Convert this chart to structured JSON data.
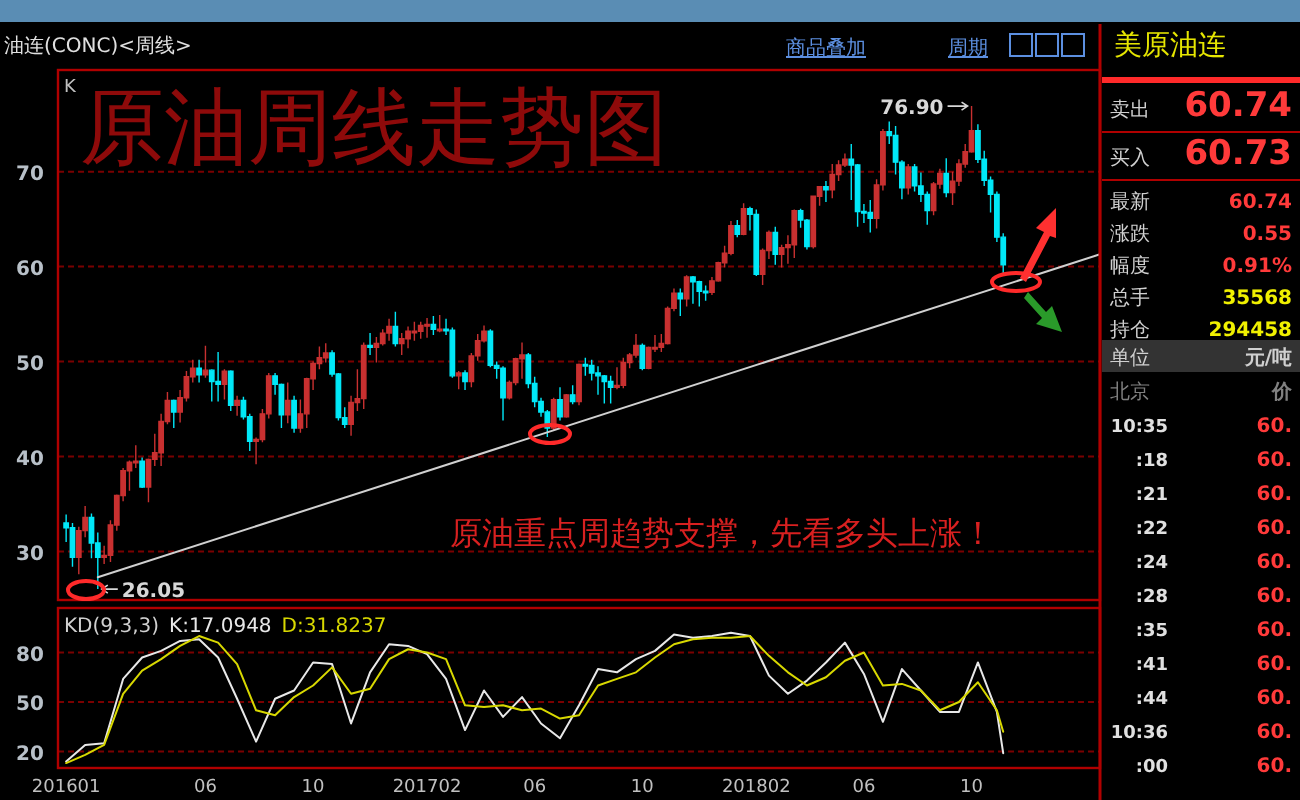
{
  "chart_data": [
    {
      "type": "candlestick",
      "title": "原油周线走势图",
      "subtitle": "油连(CONC)<周线>",
      "tick_labels": "y",
      "grid": "y",
      "ylim": [
        24.9,
        80.7
      ],
      "yticks": [
        30,
        40,
        50,
        60,
        70
      ],
      "xlim": [
        "2015-12-26",
        "2019-02-20"
      ],
      "annotations": [
        "原油重点周趋势支撑，先看多头上涨！",
        "K",
        "商品叠加",
        "周期",
        {
          "text": "76.90",
          "x": "2018-10-01",
          "y": 76.9
        },
        {
          "text": "26.05",
          "x": "2016-02-08",
          "y": 26.05
        }
      ],
      "series": [
        {
          "type": "line",
          "color": "#d0d0d0",
          "x": [
            "2016-02-08",
            "2019-02-20"
          ],
          "values": [
            27.3,
            61.3
          ]
        }
      ],
      "x": [
        "2016-01-04",
        "2016-01-11",
        "2016-01-18",
        "2016-01-25",
        "2016-02-01",
        "2016-02-08",
        "2016-02-15",
        "2016-02-22",
        "2016-02-29",
        "2016-03-07",
        "2016-03-14",
        "2016-03-21",
        "2016-03-28",
        "2016-04-04",
        "2016-04-11",
        "2016-04-18",
        "2016-04-25",
        "2016-05-02",
        "2016-05-09",
        "2016-05-16",
        "2016-05-23",
        "2016-05-30",
        "2016-06-06",
        "2016-06-13",
        "2016-06-20",
        "2016-06-27",
        "2016-07-04",
        "2016-07-11",
        "2016-07-18",
        "2016-07-25",
        "2016-08-01",
        "2016-08-08",
        "2016-08-15",
        "2016-08-22",
        "2016-08-29",
        "2016-09-05",
        "2016-09-12",
        "2016-09-19",
        "2016-09-26",
        "2016-10-03",
        "2016-10-10",
        "2016-10-17",
        "2016-10-24",
        "2016-10-31",
        "2016-11-07",
        "2016-11-14",
        "2016-11-21",
        "2016-11-28",
        "2016-12-05",
        "2016-12-12",
        "2016-12-19",
        "2016-12-26",
        "2017-01-02",
        "2017-01-09",
        "2017-01-16",
        "2017-01-23",
        "2017-01-30",
        "2017-02-06",
        "2017-02-13",
        "2017-02-20",
        "2017-02-27",
        "2017-03-06",
        "2017-03-13",
        "2017-03-20",
        "2017-03-27",
        "2017-04-03",
        "2017-04-10",
        "2017-04-17",
        "2017-04-24",
        "2017-05-01",
        "2017-05-08",
        "2017-05-15",
        "2017-05-22",
        "2017-05-29",
        "2017-06-05",
        "2017-06-12",
        "2017-06-19",
        "2017-06-26",
        "2017-07-03",
        "2017-07-10",
        "2017-07-17",
        "2017-07-24",
        "2017-07-31",
        "2017-08-07",
        "2017-08-14",
        "2017-08-21",
        "2017-08-28",
        "2017-09-04",
        "2017-09-11",
        "2017-09-18",
        "2017-09-25",
        "2017-10-02",
        "2017-10-09",
        "2017-10-16",
        "2017-10-23",
        "2017-10-30",
        "2017-11-06",
        "2017-11-13",
        "2017-11-20",
        "2017-11-27",
        "2017-12-04",
        "2017-12-11",
        "2017-12-18",
        "2017-12-25",
        "2018-01-01",
        "2018-01-08",
        "2018-01-15",
        "2018-01-22",
        "2018-01-29",
        "2018-02-05",
        "2018-02-12",
        "2018-02-19",
        "2018-02-26",
        "2018-03-05",
        "2018-03-12",
        "2018-03-19",
        "2018-03-26",
        "2018-04-02",
        "2018-04-09",
        "2018-04-16",
        "2018-04-23",
        "2018-04-30",
        "2018-05-07",
        "2018-05-14",
        "2018-05-21",
        "2018-05-28",
        "2018-06-04",
        "2018-06-11",
        "2018-06-18",
        "2018-06-25",
        "2018-07-02",
        "2018-07-09",
        "2018-07-16",
        "2018-07-23",
        "2018-07-30",
        "2018-08-06",
        "2018-08-13",
        "2018-08-20",
        "2018-08-27",
        "2018-09-03",
        "2018-09-10",
        "2018-09-17",
        "2018-09-24",
        "2018-10-01",
        "2018-10-08",
        "2018-10-15",
        "2018-10-22",
        "2018-10-29",
        "2018-11-05"
      ],
      "ohlc": [
        [
          33.0,
          33.9,
          31.0,
          32.5
        ],
        [
          32.5,
          33.0,
          28.4,
          29.4
        ],
        [
          29.4,
          32.6,
          27.6,
          32.2
        ],
        [
          32.2,
          34.8,
          31.5,
          33.6
        ],
        [
          33.6,
          34.0,
          29.3,
          30.9
        ],
        [
          30.9,
          32.0,
          26.05,
          29.4
        ],
        [
          29.4,
          30.6,
          28.7,
          29.6
        ],
        [
          29.6,
          33.3,
          28.9,
          32.8
        ],
        [
          32.8,
          36.0,
          32.2,
          35.9
        ],
        [
          35.9,
          38.8,
          35.3,
          38.5
        ],
        [
          38.5,
          39.6,
          36.4,
          39.4
        ],
        [
          39.4,
          41.2,
          38.8,
          39.5
        ],
        [
          39.5,
          39.9,
          36.7,
          36.8
        ],
        [
          36.8,
          39.8,
          35.2,
          39.7
        ],
        [
          39.7,
          42.4,
          39.0,
          40.4
        ],
        [
          40.4,
          44.5,
          39.0,
          43.7
        ],
        [
          43.7,
          46.8,
          43.4,
          45.9
        ],
        [
          45.9,
          46.0,
          43.0,
          44.7
        ],
        [
          44.7,
          47.0,
          43.6,
          46.2
        ],
        [
          46.2,
          49.0,
          45.8,
          48.4
        ],
        [
          48.4,
          50.2,
          47.8,
          49.3
        ],
        [
          49.3,
          50.2,
          47.8,
          48.6
        ],
        [
          48.6,
          51.67,
          48.3,
          49.1
        ],
        [
          49.1,
          49.2,
          45.8,
          47.9
        ],
        [
          47.9,
          51.0,
          45.8,
          47.6
        ],
        [
          47.6,
          49.2,
          46.0,
          49.0
        ],
        [
          49.0,
          49.1,
          44.8,
          45.4
        ],
        [
          45.4,
          46.4,
          44.3,
          45.9
        ],
        [
          45.9,
          46.3,
          43.9,
          44.2
        ],
        [
          44.2,
          44.5,
          40.6,
          41.6
        ],
        [
          41.6,
          42.0,
          39.19,
          41.8
        ],
        [
          41.8,
          45.0,
          41.5,
          44.5
        ],
        [
          44.5,
          48.8,
          44.0,
          48.5
        ],
        [
          48.5,
          48.8,
          46.5,
          47.6
        ],
        [
          47.6,
          47.7,
          43.0,
          44.4
        ],
        [
          44.4,
          47.8,
          43.5,
          45.9
        ],
        [
          45.9,
          46.4,
          42.5,
          43.0
        ],
        [
          43.0,
          46.0,
          42.5,
          44.5
        ],
        [
          44.5,
          48.3,
          43.0,
          48.2
        ],
        [
          48.2,
          50.0,
          47.0,
          49.8
        ],
        [
          49.8,
          51.6,
          49.2,
          50.4
        ],
        [
          50.4,
          51.93,
          49.9,
          50.9
        ],
        [
          50.9,
          51.2,
          48.4,
          48.7
        ],
        [
          48.7,
          48.8,
          43.8,
          44.1
        ],
        [
          44.1,
          45.2,
          43.0,
          43.4
        ],
        [
          43.4,
          46.4,
          42.2,
          45.7
        ],
        [
          45.7,
          49.2,
          44.8,
          46.1
        ],
        [
          46.1,
          52.0,
          45.0,
          51.7
        ],
        [
          51.7,
          53.0,
          50.7,
          51.5
        ],
        [
          51.5,
          52.6,
          49.9,
          51.9
        ],
        [
          51.9,
          53.4,
          51.7,
          53.0
        ],
        [
          53.0,
          54.5,
          52.2,
          53.7
        ],
        [
          53.7,
          55.24,
          51.6,
          51.9
        ],
        [
          51.9,
          53.0,
          50.7,
          52.4
        ],
        [
          52.4,
          53.7,
          51.4,
          53.2
        ],
        [
          53.2,
          54.2,
          52.2,
          53.2
        ],
        [
          53.2,
          54.2,
          52.4,
          53.8
        ],
        [
          53.8,
          54.6,
          52.5,
          53.9
        ],
        [
          53.9,
          54.8,
          52.8,
          53.4
        ],
        [
          53.4,
          54.9,
          53.1,
          53.4
        ],
        [
          53.4,
          54.5,
          52.8,
          53.3
        ],
        [
          53.3,
          53.6,
          48.3,
          48.5
        ],
        [
          48.5,
          49.0,
          47.1,
          48.8
        ],
        [
          48.8,
          49.1,
          47.0,
          47.9
        ],
        [
          47.9,
          50.9,
          47.3,
          50.6
        ],
        [
          50.6,
          52.9,
          50.1,
          52.2
        ],
        [
          52.2,
          53.8,
          52.0,
          53.2
        ],
        [
          53.2,
          53.4,
          49.4,
          49.6
        ],
        [
          49.6,
          50.0,
          48.2,
          49.3
        ],
        [
          49.3,
          49.5,
          43.8,
          46.2
        ],
        [
          46.2,
          48.0,
          46.0,
          47.8
        ],
        [
          47.8,
          50.4,
          47.5,
          50.3
        ],
        [
          50.3,
          52.0,
          48.2,
          50.7
        ],
        [
          50.7,
          50.9,
          47.2,
          47.7
        ],
        [
          47.7,
          48.4,
          45.2,
          45.8
        ],
        [
          45.8,
          46.2,
          44.2,
          44.7
        ],
        [
          44.7,
          44.9,
          42.05,
          43.0
        ],
        [
          43.0,
          46.2,
          42.8,
          46.0
        ],
        [
          46.0,
          47.3,
          43.8,
          44.2
        ],
        [
          44.2,
          46.6,
          44.1,
          46.5
        ],
        [
          46.5,
          47.5,
          45.5,
          45.8
        ],
        [
          45.8,
          49.8,
          45.4,
          49.7
        ],
        [
          49.7,
          50.4,
          48.5,
          49.6
        ],
        [
          49.6,
          50.2,
          48.0,
          48.8
        ],
        [
          48.8,
          49.5,
          46.5,
          48.5
        ],
        [
          48.5,
          48.6,
          45.6,
          47.9
        ],
        [
          47.9,
          48.5,
          45.6,
          47.3
        ],
        [
          47.3,
          49.4,
          47.1,
          47.5
        ],
        [
          47.5,
          50.4,
          47.2,
          49.9
        ],
        [
          49.9,
          50.9,
          49.3,
          50.7
        ],
        [
          50.7,
          52.9,
          50.4,
          51.7
        ],
        [
          51.7,
          51.9,
          49.1,
          49.3
        ],
        [
          49.3,
          51.6,
          49.2,
          51.5
        ],
        [
          51.5,
          52.8,
          51.0,
          51.5
        ],
        [
          51.5,
          52.9,
          51.0,
          51.9
        ],
        [
          51.9,
          55.8,
          51.8,
          55.6
        ],
        [
          55.6,
          57.7,
          55.3,
          57.2
        ],
        [
          57.2,
          57.7,
          54.8,
          56.6
        ],
        [
          56.6,
          59.1,
          55.8,
          58.9
        ],
        [
          58.9,
          59.0,
          56.1,
          58.4
        ],
        [
          58.4,
          58.5,
          55.8,
          57.4
        ],
        [
          57.4,
          58.0,
          56.4,
          57.3
        ],
        [
          57.3,
          58.9,
          57.0,
          58.5
        ],
        [
          58.5,
          60.5,
          58.4,
          60.4
        ],
        [
          60.4,
          62.2,
          59.9,
          61.4
        ],
        [
          61.4,
          64.8,
          61.2,
          64.3
        ],
        [
          64.3,
          64.9,
          63.1,
          63.4
        ],
        [
          63.4,
          66.66,
          63.3,
          66.1
        ],
        [
          66.1,
          66.3,
          63.8,
          65.5
        ],
        [
          65.5,
          66.0,
          59.0,
          59.2
        ],
        [
          59.2,
          61.9,
          58.07,
          61.7
        ],
        [
          61.7,
          63.8,
          60.8,
          63.6
        ],
        [
          63.6,
          64.2,
          60.2,
          61.3
        ],
        [
          61.3,
          62.3,
          59.9,
          62.0
        ],
        [
          62.0,
          63.3,
          60.3,
          62.3
        ],
        [
          62.3,
          66.0,
          60.9,
          65.9
        ],
        [
          65.9,
          66.1,
          64.1,
          64.9
        ],
        [
          64.9,
          65.0,
          61.8,
          62.1
        ],
        [
          62.1,
          67.5,
          61.9,
          67.4
        ],
        [
          67.4,
          68.5,
          66.4,
          68.4
        ],
        [
          68.4,
          69.0,
          66.8,
          68.1
        ],
        [
          68.1,
          70.8,
          67.2,
          69.7
        ],
        [
          69.7,
          71.2,
          69.0,
          70.7
        ],
        [
          70.7,
          71.9,
          70.5,
          71.3
        ],
        [
          71.3,
          72.9,
          67.0,
          70.7
        ],
        [
          70.7,
          70.8,
          64.2,
          65.8
        ],
        [
          65.8,
          66.6,
          64.6,
          65.7
        ],
        [
          65.7,
          67.0,
          63.6,
          65.1
        ],
        [
          65.1,
          69.2,
          64.0,
          68.6
        ],
        [
          68.6,
          74.5,
          68.0,
          74.2
        ],
        [
          74.2,
          75.27,
          72.9,
          73.8
        ],
        [
          73.8,
          74.8,
          69.7,
          71.0
        ],
        [
          71.0,
          71.2,
          67.1,
          68.3
        ],
        [
          68.3,
          70.8,
          67.6,
          70.5
        ],
        [
          70.5,
          70.8,
          67.9,
          68.5
        ],
        [
          68.5,
          69.9,
          66.8,
          67.6
        ],
        [
          67.6,
          67.9,
          64.4,
          65.9
        ],
        [
          65.9,
          68.9,
          65.4,
          68.7
        ],
        [
          68.7,
          70.3,
          68.2,
          69.8
        ],
        [
          69.8,
          71.4,
          67.3,
          67.8
        ],
        [
          67.8,
          70.0,
          66.5,
          69.0
        ],
        [
          69.0,
          71.3,
          68.5,
          70.8
        ],
        [
          70.8,
          72.9,
          70.4,
          72.1
        ],
        [
          72.1,
          76.9,
          72.0,
          74.3
        ],
        [
          74.3,
          75.0,
          70.9,
          71.3
        ],
        [
          71.3,
          72.2,
          68.5,
          69.1
        ],
        [
          69.1,
          69.5,
          65.7,
          67.6
        ],
        [
          67.6,
          67.9,
          62.6,
          63.1
        ],
        [
          63.1,
          63.5,
          59.3,
          60.2
        ]
      ]
    },
    {
      "type": "line",
      "title": "KD(9,3,3)",
      "legend": "top left",
      "grid": "y",
      "ylim": [
        10,
        107
      ],
      "yticks": [
        20,
        50,
        80
      ],
      "xlim": [
        "2015-12-26",
        "2019-02-20"
      ],
      "xticks": [
        {
          "value": "2016-01-04",
          "label": "201601"
        },
        {
          "value": "2016-06-06",
          "label": "06"
        },
        {
          "value": "2016-10-03",
          "label": "10"
        },
        {
          "value": "2017-02-06",
          "label": "201702"
        },
        {
          "value": "2017-06-05",
          "label": "06"
        },
        {
          "value": "2017-10-02",
          "label": "10"
        },
        {
          "value": "2018-02-05",
          "label": "201802"
        },
        {
          "value": "2018-06-04",
          "label": "06"
        },
        {
          "value": "2018-10-01",
          "label": "10"
        }
      ],
      "x": [
        "2016-01-04",
        "2016-01-25",
        "2016-02-15",
        "2016-03-07",
        "2016-03-28",
        "2016-04-18",
        "2016-05-09",
        "2016-05-30",
        "2016-06-20",
        "2016-07-11",
        "2016-08-01",
        "2016-08-22",
        "2016-09-12",
        "2016-10-03",
        "2016-10-24",
        "2016-11-14",
        "2016-12-05",
        "2016-12-26",
        "2017-01-16",
        "2017-02-06",
        "2017-02-27",
        "2017-03-20",
        "2017-04-10",
        "2017-05-01",
        "2017-05-22",
        "2017-06-12",
        "2017-07-03",
        "2017-07-24",
        "2017-08-14",
        "2017-09-04",
        "2017-09-25",
        "2017-10-16",
        "2017-11-06",
        "2017-11-27",
        "2017-12-18",
        "2018-01-08",
        "2018-01-29",
        "2018-02-19",
        "2018-03-12",
        "2018-04-02",
        "2018-04-23",
        "2018-05-14",
        "2018-06-04",
        "2018-06-25",
        "2018-07-16",
        "2018-08-06",
        "2018-08-27",
        "2018-09-17",
        "2018-10-08",
        "2018-10-29",
        "2018-11-05"
      ],
      "series": [
        {
          "name": "K:17.0948",
          "color": "#e8e8e8",
          "values": [
            14,
            24,
            25,
            64,
            77,
            81,
            87,
            88,
            77,
            52,
            26,
            52,
            57,
            74,
            73,
            37,
            68,
            85,
            84,
            79,
            64,
            33,
            57,
            41,
            53,
            37,
            28,
            48,
            70,
            68,
            76,
            81,
            91,
            89,
            90,
            92,
            90,
            66,
            55,
            63,
            74,
            86,
            67,
            38,
            70,
            57,
            44,
            44,
            74,
            44,
            19
          ]
        },
        {
          "name": "D:31.8237",
          "color": "#d8d800",
          "values": [
            13,
            18,
            24,
            55,
            69,
            76,
            84,
            90,
            86,
            73,
            45,
            42,
            53,
            60,
            71,
            55,
            58,
            76,
            82,
            80,
            76,
            48,
            47,
            48,
            45,
            46,
            40,
            42,
            60,
            64,
            68,
            77,
            85,
            88,
            89,
            89,
            90,
            78,
            68,
            60,
            65,
            75,
            80,
            60,
            61,
            57,
            45,
            50,
            62,
            45,
            32
          ]
        }
      ]
    },
    {
      "type": "other",
      "title": "美原油连",
      "annotations": [
        "卖出",
        "60.74",
        "买入",
        "60.73",
        "最新",
        "60.74",
        "涨跌",
        "0.55",
        "幅度",
        "0.91%",
        "总手",
        "35568",
        "持仓",
        "294458",
        "单位",
        "元/吨",
        "北京",
        "价",
        "10:35",
        "60.",
        ":18",
        "60.",
        ":21",
        "60.",
        ":22",
        "60.",
        ":24",
        "60.",
        ":28",
        "60.",
        ":35",
        "60.",
        ":41",
        "60.",
        ":44",
        "60.",
        "10:36",
        "60.",
        ":00",
        "60."
      ]
    }
  ]
}
